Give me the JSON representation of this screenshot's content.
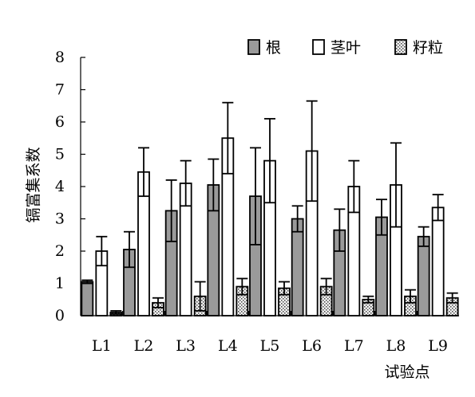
{
  "chart_data": {
    "type": "bar",
    "title": "",
    "xlabel": "试验点",
    "ylabel": "镉富集系数",
    "ylim": [
      0,
      8
    ],
    "yticks": [
      "0",
      "1",
      "2",
      "3",
      "4",
      "5",
      "6",
      "7",
      "8"
    ],
    "categories": [
      "L1",
      "L2",
      "L3",
      "L4",
      "L5",
      "L6",
      "L7",
      "L8",
      "L9"
    ],
    "legend_position": "top-right",
    "grid": false,
    "series": [
      {
        "name": "根",
        "fill": "#9a9a9a",
        "pattern": "solid",
        "values": [
          1.05,
          2.05,
          3.25,
          4.05,
          3.7,
          3.0,
          2.65,
          3.05,
          2.45
        ],
        "errors": [
          0.05,
          0.55,
          0.95,
          0.8,
          1.5,
          0.4,
          0.65,
          0.55,
          0.3
        ]
      },
      {
        "name": "茎叶",
        "fill": "#ffffff",
        "pattern": "open",
        "values": [
          2.0,
          4.45,
          4.1,
          5.5,
          4.8,
          5.1,
          4.0,
          4.05,
          3.35
        ],
        "errors": [
          0.45,
          0.75,
          0.7,
          1.1,
          1.3,
          1.55,
          0.8,
          1.3,
          0.4
        ]
      },
      {
        "name": "籽粒",
        "fill": "#e6e6e6",
        "pattern": "dotted",
        "values": [
          0.1,
          0.4,
          0.6,
          0.9,
          0.85,
          0.9,
          0.5,
          0.6,
          0.55
        ],
        "errors": [
          0.05,
          0.15,
          0.45,
          0.25,
          0.2,
          0.25,
          0.1,
          0.2,
          0.15
        ]
      }
    ]
  }
}
